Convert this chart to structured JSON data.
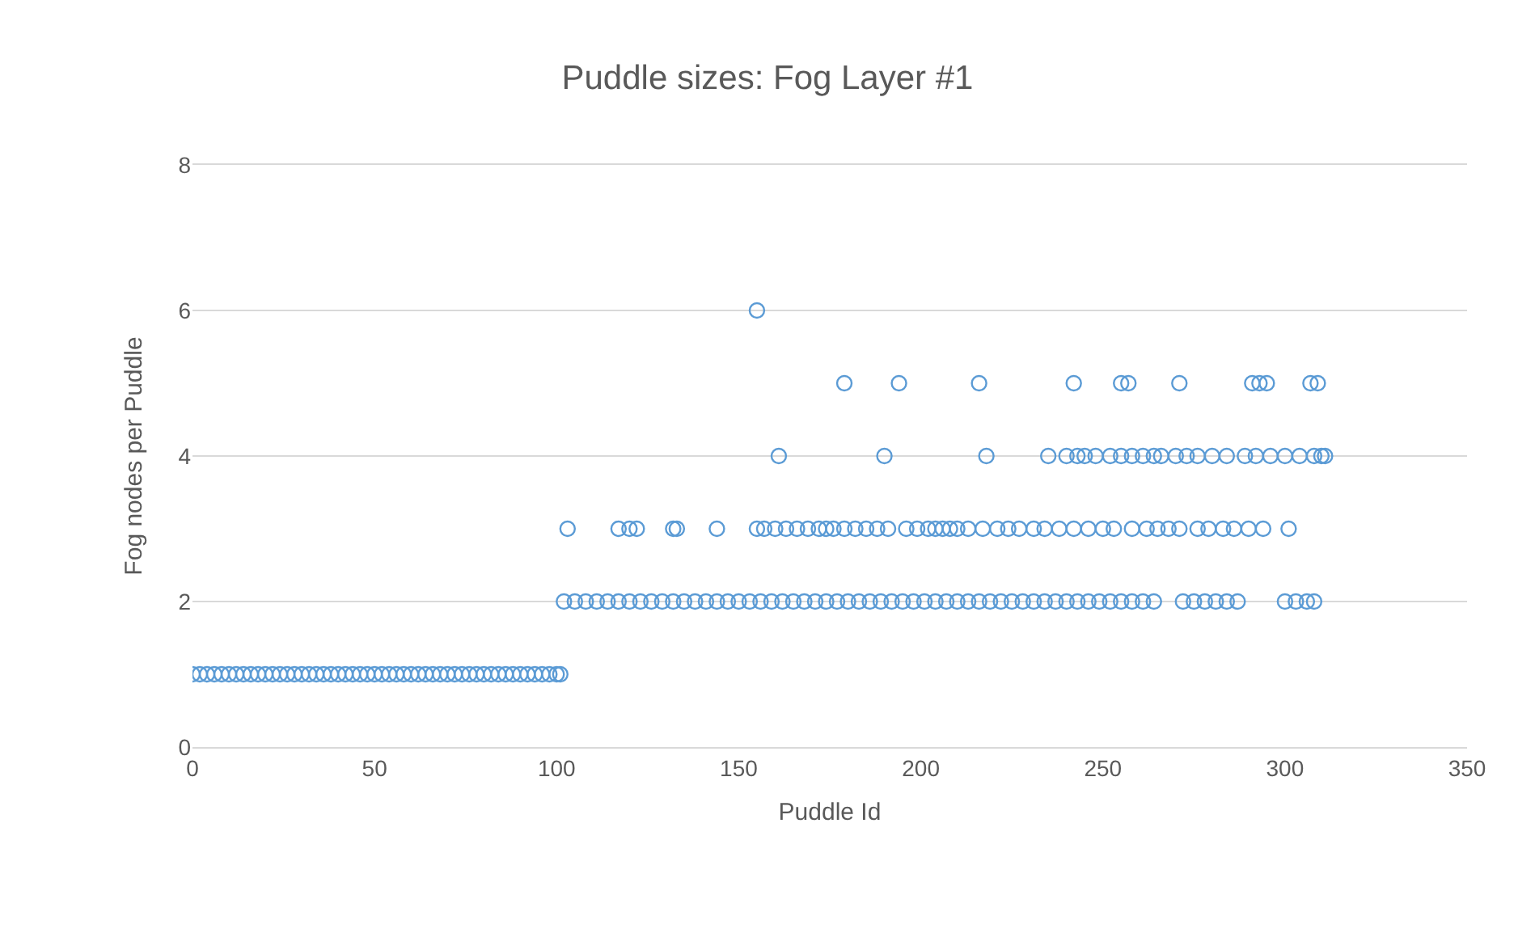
{
  "chart_data": {
    "type": "scatter",
    "title": "Puddle sizes: Fog Layer #1",
    "xlabel": "Puddle Id",
    "ylabel": "Fog nodes per Puddle",
    "xlim": [
      0,
      350
    ],
    "xticks": [
      0,
      50,
      100,
      150,
      200,
      250,
      300,
      350
    ],
    "ylim": [
      0,
      8
    ],
    "yticks": [
      0,
      2,
      4,
      6,
      8
    ],
    "grid": "y",
    "marker": "circle",
    "series": [
      {
        "color": "#5b9bd5",
        "x": [
          0,
          2,
          4,
          6,
          8,
          10,
          12,
          14,
          16,
          18,
          20,
          22,
          24,
          26,
          28,
          30,
          32,
          34,
          36,
          38,
          40,
          42,
          44,
          46,
          48,
          50,
          52,
          54,
          56,
          58,
          60,
          62,
          64,
          66,
          68,
          70,
          72,
          74,
          76,
          78,
          80,
          82,
          84,
          86,
          88,
          90,
          92,
          94,
          96,
          98,
          100,
          101,
          102,
          105,
          108,
          111,
          114,
          117,
          120,
          123,
          126,
          129,
          132,
          135,
          138,
          141,
          144,
          147,
          150,
          153,
          156,
          159,
          162,
          165,
          168,
          171,
          174,
          177,
          180,
          183,
          186,
          189,
          192,
          195,
          198,
          201,
          204,
          207,
          210,
          213,
          216,
          219,
          222,
          225,
          228,
          231,
          234,
          237,
          240,
          243,
          246,
          249,
          252,
          255,
          258,
          261,
          264,
          272,
          275,
          278,
          281,
          284,
          287,
          300,
          303,
          306,
          308,
          103,
          117,
          120,
          122,
          132,
          133,
          144,
          155,
          157,
          160,
          163,
          166,
          169,
          172,
          174,
          176,
          179,
          182,
          185,
          188,
          191,
          196,
          199,
          202,
          204,
          206,
          208,
          210,
          213,
          217,
          221,
          224,
          227,
          231,
          234,
          238,
          242,
          246,
          250,
          253,
          258,
          262,
          265,
          268,
          271,
          276,
          279,
          283,
          286,
          290,
          294,
          301,
          161,
          190,
          218,
          235,
          240,
          243,
          245,
          248,
          252,
          255,
          258,
          261,
          264,
          266,
          270,
          273,
          276,
          280,
          284,
          289,
          292,
          296,
          300,
          304,
          308,
          310,
          311,
          179,
          194,
          216,
          242,
          255,
          257,
          271,
          291,
          293,
          295,
          307,
          309,
          155
        ],
        "values": [
          1,
          1,
          1,
          1,
          1,
          1,
          1,
          1,
          1,
          1,
          1,
          1,
          1,
          1,
          1,
          1,
          1,
          1,
          1,
          1,
          1,
          1,
          1,
          1,
          1,
          1,
          1,
          1,
          1,
          1,
          1,
          1,
          1,
          1,
          1,
          1,
          1,
          1,
          1,
          1,
          1,
          1,
          1,
          1,
          1,
          1,
          1,
          1,
          1,
          1,
          1,
          1,
          2,
          2,
          2,
          2,
          2,
          2,
          2,
          2,
          2,
          2,
          2,
          2,
          2,
          2,
          2,
          2,
          2,
          2,
          2,
          2,
          2,
          2,
          2,
          2,
          2,
          2,
          2,
          2,
          2,
          2,
          2,
          2,
          2,
          2,
          2,
          2,
          2,
          2,
          2,
          2,
          2,
          2,
          2,
          2,
          2,
          2,
          2,
          2,
          2,
          2,
          2,
          2,
          2,
          2,
          2,
          2,
          2,
          2,
          2,
          2,
          2,
          2,
          2,
          2,
          2,
          3,
          3,
          3,
          3,
          3,
          3,
          3,
          3,
          3,
          3,
          3,
          3,
          3,
          3,
          3,
          3,
          3,
          3,
          3,
          3,
          3,
          3,
          3,
          3,
          3,
          3,
          3,
          3,
          3,
          3,
          3,
          3,
          3,
          3,
          3,
          3,
          3,
          3,
          3,
          3,
          3,
          3,
          3,
          3,
          3,
          3,
          3,
          3,
          3,
          3,
          3,
          3,
          4,
          4,
          4,
          4,
          4,
          4,
          4,
          4,
          4,
          4,
          4,
          4,
          4,
          4,
          4,
          4,
          4,
          4,
          4,
          4,
          4,
          4,
          4,
          4,
          4,
          4,
          4,
          5,
          5,
          5,
          5,
          5,
          5,
          5,
          5,
          5,
          5,
          5,
          5,
          6
        ]
      }
    ]
  }
}
